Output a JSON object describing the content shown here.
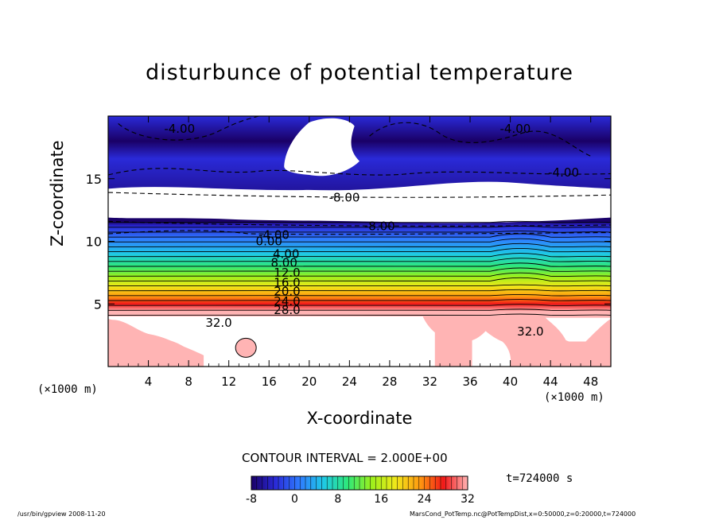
{
  "chart_data": {
    "type": "heatmap",
    "title": "disturbunce of potential temperature",
    "xlabel": "X-coordinate",
    "ylabel": "Z-coordinate",
    "x_unit": "(×1000 m)",
    "xlim": [
      0,
      50
    ],
    "ylim": [
      0,
      20
    ],
    "x_ticks": [
      4,
      8,
      12,
      16,
      20,
      24,
      28,
      32,
      36,
      40,
      44,
      48
    ],
    "y_ticks": [
      5,
      10,
      15
    ],
    "contour_interval_text": "CONTOUR INTERVAL = 2.000E+00",
    "contour_interval": 2.0,
    "color_range": [
      -8,
      32
    ],
    "colorbar_ticks": [
      -8,
      0,
      8,
      16,
      24,
      32
    ],
    "colorbar_colors": [
      "#1a0066",
      "#2a2ad8",
      "#2f7bff",
      "#1fc9e6",
      "#2ee87a",
      "#9cf01c",
      "#f0e81a",
      "#ff9a10",
      "#f21818",
      "#ffb4b4"
    ],
    "contour_labels": [
      {
        "text": "-4.00",
        "x": 7.1,
        "z": 19.0
      },
      {
        "text": "-4.00",
        "x": 40.5,
        "z": 19.0
      },
      {
        "text": "-4.00",
        "x": 45.3,
        "z": 15.5
      },
      {
        "text": "-8.00",
        "x": 23.5,
        "z": 13.5
      },
      {
        "text": "-8.00",
        "x": 27.0,
        "z": 11.2
      },
      {
        "text": "-4.00",
        "x": 16.5,
        "z": 10.5
      },
      {
        "text": "0.00",
        "x": 16.0,
        "z": 10.0
      },
      {
        "text": "4.00",
        "x": 17.7,
        "z": 9.0
      },
      {
        "text": "8.00",
        "x": 17.5,
        "z": 8.3
      },
      {
        "text": "12.0",
        "x": 17.8,
        "z": 7.5
      },
      {
        "text": "16.0",
        "x": 17.8,
        "z": 6.7
      },
      {
        "text": "20.0",
        "x": 17.8,
        "z": 6.0
      },
      {
        "text": "24.0",
        "x": 17.8,
        "z": 5.2
      },
      {
        "text": "28.0",
        "x": 17.8,
        "z": 4.5
      },
      {
        "text": "32.0",
        "x": 11.0,
        "z": 3.5
      },
      {
        "text": "32.0",
        "x": 42.0,
        "z": 2.8
      }
    ]
  },
  "time_label": "t=724000 s",
  "footer": {
    "left": "/usr/bin/gpview   2008-11-20",
    "right": "MarsCond_PotTemp.nc@PotTempDist,x=0:50000,z=0:20000,t=724000"
  }
}
